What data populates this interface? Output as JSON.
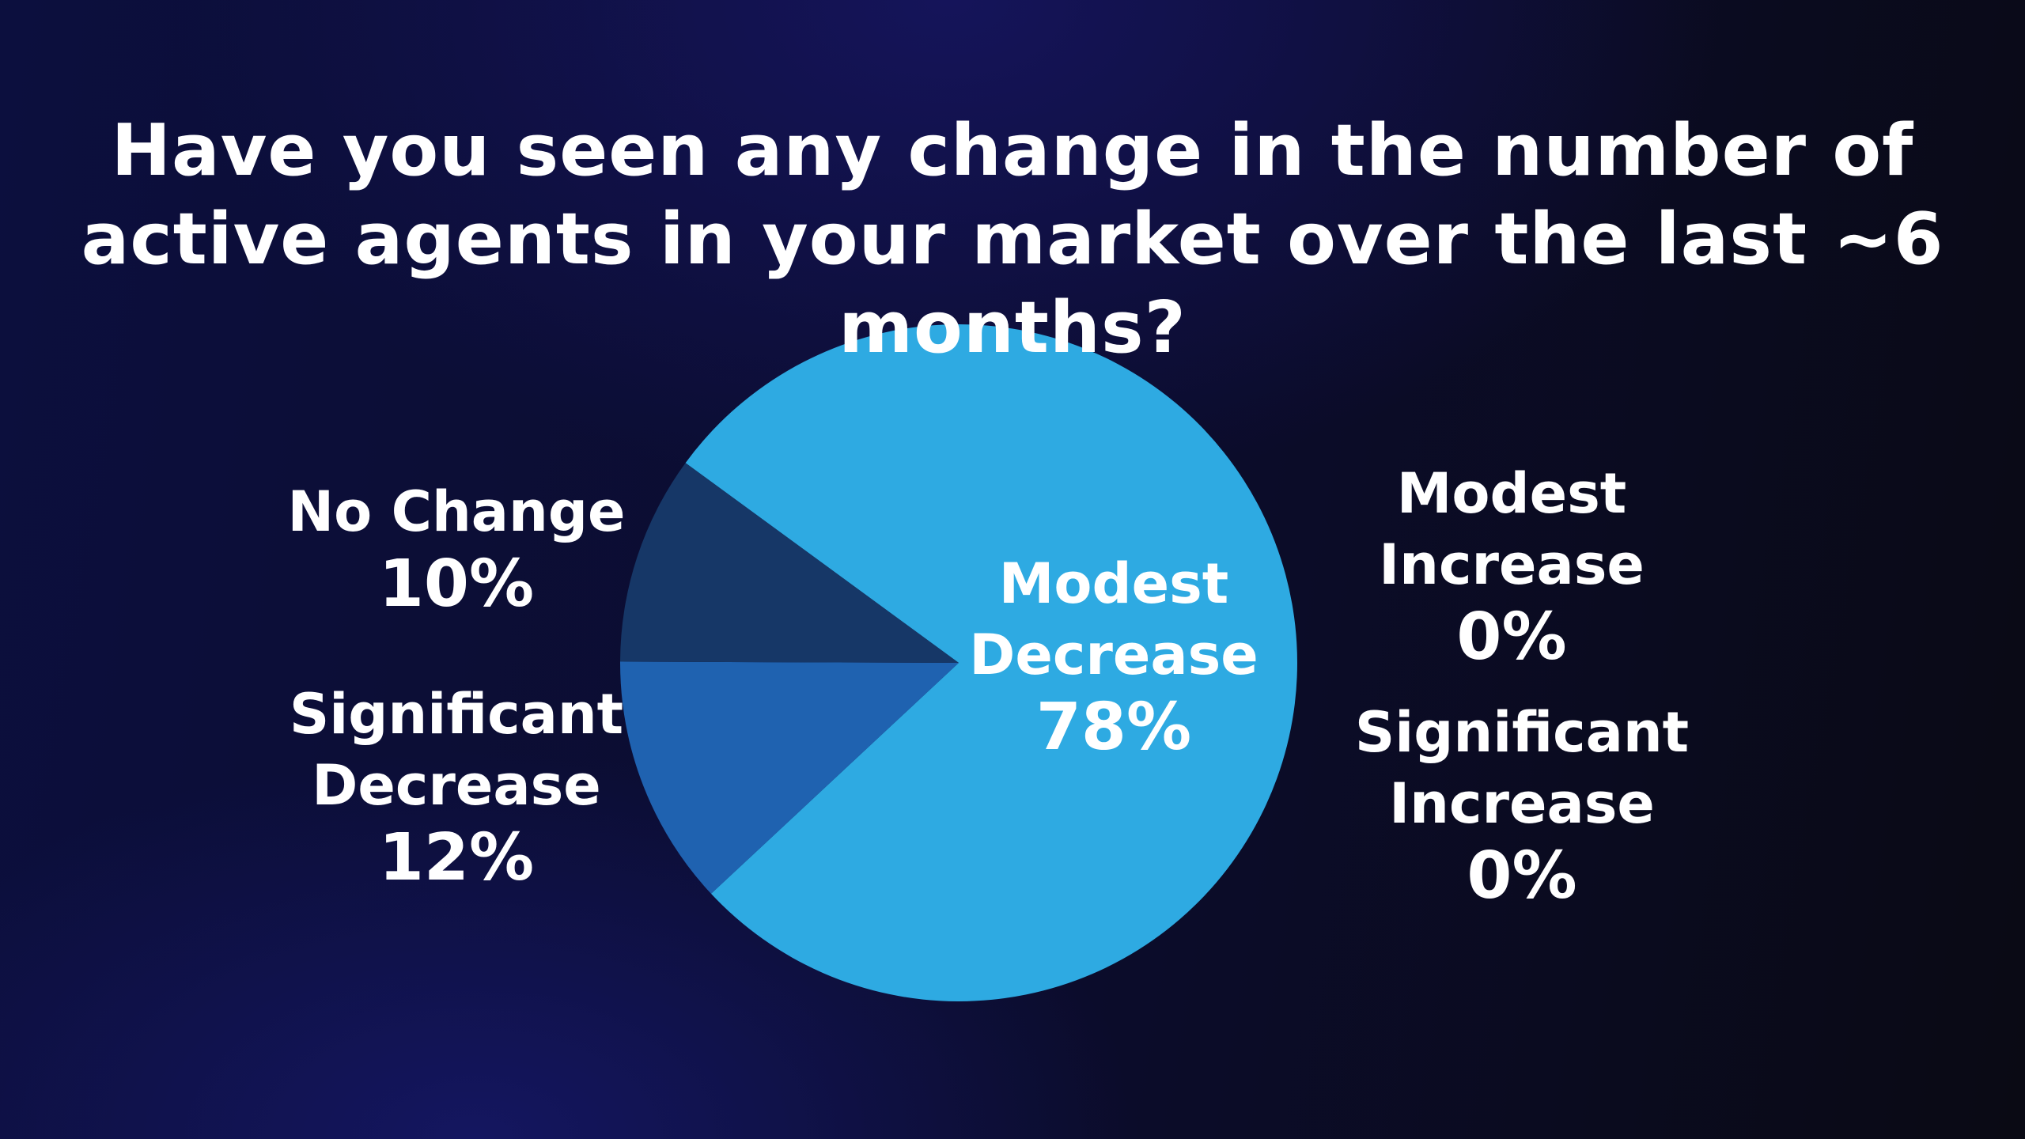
{
  "chart_data": {
    "type": "pie",
    "title": "Have you seen any change in the number of active agents in your market over the last ~6 months?",
    "categories": [
      "Modest Decrease",
      "Significant Decrease",
      "No Change",
      "Modest Increase",
      "Significant Increase"
    ],
    "values": [
      78,
      12,
      10,
      0,
      0
    ],
    "value_labels": [
      "78%",
      "12%",
      "10%",
      "0%",
      "0%"
    ],
    "colors": [
      "#2eaae2",
      "#1f62b0",
      "#163767",
      null,
      null
    ]
  }
}
